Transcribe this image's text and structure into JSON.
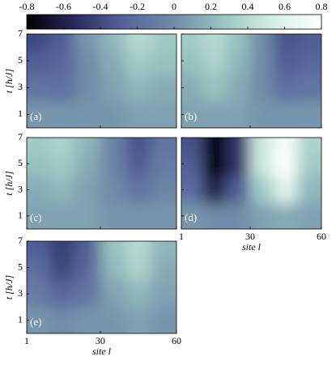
{
  "chart_data": {
    "type": "heatmap",
    "colorbar": {
      "lim": [
        -0.8,
        0.8
      ],
      "ticks": [
        -0.8,
        -0.6,
        -0.4,
        -0.2,
        0,
        0.2,
        0.4,
        0.6,
        0.8
      ],
      "colors": [
        "#000000",
        "#2b2a60",
        "#56659b",
        "#6f8ba9",
        "#99c6bf",
        "#d3eee4",
        "#ffffff"
      ]
    },
    "xlim": [
      1,
      60
    ],
    "xticks": [
      1,
      30,
      60
    ],
    "xlabel": "site l",
    "ylim": [
      0,
      7
    ],
    "yticks": [
      1,
      3,
      5,
      7
    ],
    "ylabel": "t [h/J]",
    "x": [
      5,
      15,
      25,
      35,
      45,
      55
    ],
    "y": [
      1,
      3,
      5,
      6.5
    ],
    "panels": [
      {
        "label": "(a)",
        "z": [
          [
            0.05,
            0.05,
            0.05,
            0.05,
            0.1,
            0.1
          ],
          [
            -0.15,
            -0.2,
            0.0,
            0.1,
            0.2,
            0.15
          ],
          [
            -0.3,
            -0.25,
            0.0,
            0.15,
            0.3,
            0.25
          ],
          [
            -0.4,
            -0.3,
            0.05,
            0.2,
            0.4,
            0.3
          ]
        ]
      },
      {
        "label": "(b)",
        "z": [
          [
            0.1,
            0.1,
            0.1,
            0.05,
            0.05,
            0.05
          ],
          [
            0.15,
            0.25,
            0.15,
            0.0,
            -0.2,
            -0.15
          ],
          [
            0.25,
            0.35,
            0.2,
            0.0,
            -0.3,
            -0.25
          ],
          [
            0.3,
            0.4,
            0.25,
            0.0,
            -0.35,
            -0.3
          ]
        ]
      },
      {
        "label": "(c)",
        "z": [
          [
            0.1,
            0.1,
            0.1,
            0.05,
            0.05,
            0.05
          ],
          [
            0.15,
            0.2,
            0.1,
            0.0,
            -0.15,
            -0.05
          ],
          [
            0.25,
            0.3,
            0.15,
            -0.05,
            -0.3,
            -0.1
          ],
          [
            0.3,
            0.35,
            0.2,
            -0.05,
            -0.35,
            -0.15
          ]
        ]
      },
      {
        "label": "(d)",
        "z": [
          [
            0.05,
            0.0,
            0.0,
            0.1,
            0.15,
            0.1
          ],
          [
            -0.2,
            -0.6,
            -0.3,
            0.3,
            0.6,
            0.2
          ],
          [
            -0.3,
            -0.8,
            -0.5,
            0.5,
            0.8,
            0.3
          ],
          [
            -0.35,
            -0.8,
            -0.5,
            0.5,
            0.75,
            0.35
          ]
        ]
      },
      {
        "label": "(e)",
        "z": [
          [
            0.05,
            0.0,
            0.05,
            0.05,
            0.1,
            0.05
          ],
          [
            -0.1,
            -0.25,
            -0.15,
            0.1,
            0.2,
            0.1
          ],
          [
            -0.2,
            -0.4,
            -0.25,
            0.2,
            0.35,
            0.15
          ],
          [
            -0.3,
            -0.45,
            -0.3,
            0.25,
            0.4,
            0.2
          ]
        ]
      }
    ]
  }
}
